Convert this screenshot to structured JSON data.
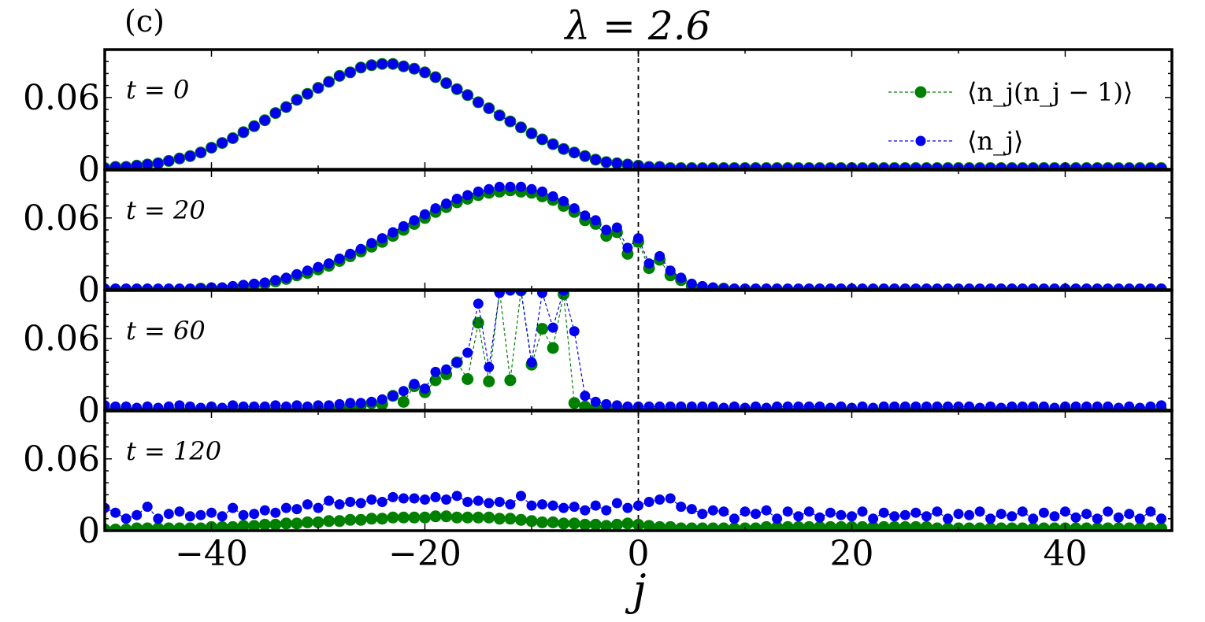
{
  "chart_data": {
    "type": "scatter",
    "panel_tag": "(c)",
    "title": "λ = 2.6",
    "xlabel": "j",
    "ylabel": "",
    "xlim": [
      -50,
      50
    ],
    "ylim": [
      0,
      0.1
    ],
    "xticks": [
      {
        "value": -40,
        "label": "−40"
      },
      {
        "value": -20,
        "label": "−20"
      },
      {
        "value": 0,
        "label": "0"
      },
      {
        "value": 20,
        "label": "20"
      },
      {
        "value": 40,
        "label": "40"
      }
    ],
    "yticks": [
      {
        "value": 0,
        "label": "0"
      },
      {
        "value": 0.06,
        "label": "0.06"
      }
    ],
    "reference_line_x": 0,
    "legend": {
      "position": "top-right",
      "entries": [
        {
          "name": "⟨n_j(n_j − 1)⟩",
          "color": "#008000"
        },
        {
          "name": "⟨n_j⟩",
          "color": "#0000ee"
        }
      ]
    },
    "colors": {
      "pair": "#008000",
      "density": "#0000ee"
    },
    "panels": [
      {
        "label": "t = 0",
        "series": [
          {
            "name": "⟨n_j(n_j − 1)⟩",
            "values": [
              0.001,
              0.002,
              0.002,
              0.003,
              0.004,
              0.005,
              0.007,
              0.009,
              0.011,
              0.014,
              0.018,
              0.022,
              0.026,
              0.031,
              0.036,
              0.041,
              0.047,
              0.052,
              0.058,
              0.063,
              0.068,
              0.073,
              0.078,
              0.081,
              0.085,
              0.087,
              0.088,
              0.088,
              0.086,
              0.084,
              0.081,
              0.077,
              0.072,
              0.067,
              0.062,
              0.056,
              0.051,
              0.045,
              0.04,
              0.035,
              0.03,
              0.025,
              0.021,
              0.017,
              0.014,
              0.011,
              0.008,
              0.006,
              0.005,
              0.004,
              0.003,
              0.002,
              0.002,
              0.001,
              0.001,
              0.001,
              0.001,
              0.001,
              0.001,
              0.001,
              0.001,
              0.001,
              0.001,
              0.001,
              0.001,
              0.001,
              0.001,
              0.001,
              0.001,
              0.001,
              0.001,
              0.001,
              0.001,
              0.001,
              0.001,
              0.001,
              0.001,
              0.001,
              0.001,
              0.001,
              0.001,
              0.001,
              0.001,
              0.001,
              0.001,
              0.001,
              0.001,
              0.001,
              0.001,
              0.001,
              0.001,
              0.001,
              0.001,
              0.001,
              0.001,
              0.001,
              0.001,
              0.001,
              0.001,
              0.001
            ]
          },
          {
            "name": "⟨n_j⟩",
            "values": [
              0.001,
              0.002,
              0.002,
              0.003,
              0.004,
              0.005,
              0.007,
              0.009,
              0.011,
              0.014,
              0.018,
              0.022,
              0.026,
              0.031,
              0.036,
              0.041,
              0.047,
              0.052,
              0.058,
              0.063,
              0.068,
              0.073,
              0.078,
              0.081,
              0.085,
              0.087,
              0.088,
              0.088,
              0.086,
              0.084,
              0.081,
              0.077,
              0.072,
              0.067,
              0.062,
              0.056,
              0.051,
              0.045,
              0.04,
              0.035,
              0.03,
              0.025,
              0.021,
              0.017,
              0.014,
              0.011,
              0.008,
              0.006,
              0.005,
              0.004,
              0.003,
              0.002,
              0.002,
              0.001,
              0.001,
              0.001,
              0.001,
              0.001,
              0.001,
              0.001,
              0.001,
              0.001,
              0.001,
              0.001,
              0.001,
              0.001,
              0.001,
              0.001,
              0.001,
              0.001,
              0.001,
              0.001,
              0.001,
              0.001,
              0.001,
              0.001,
              0.001,
              0.001,
              0.001,
              0.001,
              0.001,
              0.001,
              0.001,
              0.001,
              0.001,
              0.001,
              0.001,
              0.001,
              0.001,
              0.001,
              0.001,
              0.001,
              0.001,
              0.001,
              0.001,
              0.001,
              0.001,
              0.001,
              0.001,
              0.001
            ]
          }
        ]
      },
      {
        "label": "t = 20",
        "series": [
          {
            "name": "⟨n_j(n_j − 1)⟩",
            "values": [
              0.0,
              0.0,
              0.0,
              0.0,
              0.0,
              0.0,
              0.0,
              0.0,
              0.0,
              0.001,
              0.001,
              0.001,
              0.002,
              0.003,
              0.004,
              0.005,
              0.007,
              0.009,
              0.012,
              0.014,
              0.017,
              0.02,
              0.024,
              0.028,
              0.032,
              0.036,
              0.04,
              0.045,
              0.05,
              0.055,
              0.06,
              0.065,
              0.069,
              0.073,
              0.076,
              0.079,
              0.081,
              0.082,
              0.083,
              0.082,
              0.081,
              0.078,
              0.075,
              0.07,
              0.065,
              0.058,
              0.055,
              0.045,
              0.048,
              0.03,
              0.04,
              0.018,
              0.025,
              0.012,
              0.008,
              0.003,
              0.002,
              0.001,
              0.001,
              0.0,
              0.0,
              0.0,
              0.0,
              0.0,
              0.0,
              0.0,
              0.0,
              0.0,
              0.0,
              0.0,
              0.0,
              0.0,
              0.0,
              0.0,
              0.0,
              0.0,
              0.0,
              0.0,
              0.0,
              0.0,
              0.0,
              0.0,
              0.0,
              0.0,
              0.0,
              0.0,
              0.0,
              0.0,
              0.0,
              0.0,
              0.0,
              0.0,
              0.0,
              0.0,
              0.0,
              0.0,
              0.0,
              0.0,
              0.0,
              0.0
            ]
          },
          {
            "name": "⟨n_j⟩",
            "values": [
              0.001,
              0.001,
              0.001,
              0.001,
              0.001,
              0.001,
              0.001,
              0.001,
              0.001,
              0.001,
              0.002,
              0.002,
              0.003,
              0.004,
              0.005,
              0.006,
              0.008,
              0.01,
              0.013,
              0.016,
              0.019,
              0.022,
              0.026,
              0.03,
              0.034,
              0.039,
              0.043,
              0.048,
              0.053,
              0.058,
              0.063,
              0.068,
              0.072,
              0.076,
              0.079,
              0.082,
              0.084,
              0.086,
              0.086,
              0.086,
              0.084,
              0.082,
              0.078,
              0.074,
              0.068,
              0.062,
              0.058,
              0.05,
              0.052,
              0.035,
              0.043,
              0.022,
              0.028,
              0.016,
              0.01,
              0.005,
              0.003,
              0.002,
              0.001,
              0.001,
              0.001,
              0.001,
              0.001,
              0.001,
              0.001,
              0.001,
              0.001,
              0.001,
              0.001,
              0.001,
              0.001,
              0.001,
              0.001,
              0.001,
              0.001,
              0.001,
              0.001,
              0.001,
              0.001,
              0.001,
              0.001,
              0.001,
              0.001,
              0.001,
              0.001,
              0.001,
              0.001,
              0.001,
              0.001,
              0.001,
              0.001,
              0.001,
              0.001,
              0.001,
              0.001,
              0.001,
              0.001,
              0.001,
              0.001,
              0.001
            ]
          }
        ]
      },
      {
        "label": "t = 60",
        "series": [
          {
            "name": "⟨n_j(n_j − 1)⟩",
            "values": [
              0.0,
              0.0,
              0.0,
              0.0,
              0.0,
              0.0,
              0.0,
              0.0,
              0.0,
              0.0,
              0.0,
              0.0,
              0.0,
              0.0,
              0.0,
              0.0,
              0.0,
              0.0,
              0.0,
              0.0,
              0.001,
              0.001,
              0.002,
              0.003,
              0.004,
              0.006,
              0.005,
              0.012,
              0.007,
              0.02,
              0.015,
              0.025,
              0.03,
              0.04,
              0.026,
              0.073,
              0.024,
              0.1,
              0.025,
              0.1,
              0.038,
              0.068,
              0.052,
              0.097,
              0.006,
              0.003,
              0.002,
              0.002,
              0.001,
              0.001,
              0.0,
              0.0,
              0.0,
              0.0,
              0.0,
              0.0,
              0.0,
              0.0,
              0.0,
              0.0,
              0.0,
              0.0,
              0.0,
              0.0,
              0.0,
              0.0,
              0.0,
              0.0,
              0.0,
              0.0,
              0.0,
              0.0,
              0.0,
              0.0,
              0.0,
              0.0,
              0.0,
              0.0,
              0.0,
              0.0,
              0.0,
              0.0,
              0.0,
              0.0,
              0.0,
              0.0,
              0.0,
              0.0,
              0.0,
              0.0,
              0.0,
              0.0,
              0.0,
              0.0,
              0.0,
              0.0,
              0.0,
              0.0,
              0.0,
              0.0
            ]
          },
          {
            "name": "⟨n_j⟩",
            "values": [
              0.004,
              0.003,
              0.003,
              0.002,
              0.003,
              0.002,
              0.003,
              0.004,
              0.003,
              0.002,
              0.003,
              0.002,
              0.004,
              0.003,
              0.003,
              0.003,
              0.004,
              0.003,
              0.004,
              0.003,
              0.004,
              0.004,
              0.005,
              0.006,
              0.006,
              0.007,
              0.009,
              0.012,
              0.016,
              0.022,
              0.018,
              0.032,
              0.034,
              0.04,
              0.048,
              0.089,
              0.036,
              0.098,
              0.1,
              0.1,
              0.04,
              0.098,
              0.069,
              0.104,
              0.066,
              0.012,
              0.007,
              0.005,
              0.004,
              0.003,
              0.003,
              0.003,
              0.003,
              0.003,
              0.003,
              0.003,
              0.003,
              0.003,
              0.002,
              0.003,
              0.002,
              0.003,
              0.002,
              0.003,
              0.003,
              0.003,
              0.003,
              0.003,
              0.002,
              0.003,
              0.002,
              0.003,
              0.002,
              0.003,
              0.003,
              0.003,
              0.003,
              0.003,
              0.003,
              0.003,
              0.003,
              0.003,
              0.002,
              0.003,
              0.002,
              0.003,
              0.003,
              0.003,
              0.003,
              0.002,
              0.003,
              0.003,
              0.003,
              0.003,
              0.003,
              0.002,
              0.003,
              0.002,
              0.003,
              0.004
            ]
          }
        ]
      },
      {
        "label": "t = 120",
        "series": [
          {
            "name": "⟨n_j(n_j − 1)⟩",
            "values": [
              0.001,
              0.001,
              0.001,
              0.002,
              0.002,
              0.002,
              0.002,
              0.002,
              0.002,
              0.002,
              0.003,
              0.003,
              0.003,
              0.004,
              0.004,
              0.005,
              0.005,
              0.006,
              0.006,
              0.007,
              0.007,
              0.008,
              0.008,
              0.009,
              0.009,
              0.01,
              0.01,
              0.011,
              0.011,
              0.011,
              0.011,
              0.012,
              0.012,
              0.011,
              0.011,
              0.011,
              0.011,
              0.01,
              0.01,
              0.009,
              0.008,
              0.007,
              0.007,
              0.006,
              0.006,
              0.005,
              0.005,
              0.004,
              0.005,
              0.006,
              0.005,
              0.004,
              0.003,
              0.003,
              0.002,
              0.002,
              0.002,
              0.002,
              0.002,
              0.002,
              0.002,
              0.002,
              0.003,
              0.003,
              0.003,
              0.003,
              0.003,
              0.003,
              0.003,
              0.003,
              0.003,
              0.003,
              0.003,
              0.003,
              0.003,
              0.003,
              0.003,
              0.003,
              0.002,
              0.002,
              0.002,
              0.002,
              0.002,
              0.002,
              0.002,
              0.002,
              0.002,
              0.002,
              0.002,
              0.002,
              0.002,
              0.002,
              0.002,
              0.002,
              0.002,
              0.002,
              0.002,
              0.002,
              0.002,
              0.002
            ]
          },
          {
            "name": "⟨n_j⟩",
            "values": [
              0.019,
              0.015,
              0.01,
              0.013,
              0.02,
              0.01,
              0.014,
              0.016,
              0.012,
              0.013,
              0.015,
              0.012,
              0.019,
              0.013,
              0.014,
              0.017,
              0.015,
              0.019,
              0.018,
              0.022,
              0.019,
              0.025,
              0.022,
              0.024,
              0.023,
              0.026,
              0.024,
              0.028,
              0.027,
              0.027,
              0.026,
              0.028,
              0.026,
              0.029,
              0.024,
              0.025,
              0.023,
              0.024,
              0.022,
              0.029,
              0.021,
              0.022,
              0.021,
              0.019,
              0.02,
              0.017,
              0.021,
              0.017,
              0.023,
              0.019,
              0.021,
              0.024,
              0.026,
              0.027,
              0.02,
              0.018,
              0.014,
              0.017,
              0.016,
              0.01,
              0.016,
              0.014,
              0.017,
              0.01,
              0.016,
              0.012,
              0.016,
              0.011,
              0.015,
              0.013,
              0.012,
              0.016,
              0.01,
              0.015,
              0.012,
              0.013,
              0.015,
              0.012,
              0.016,
              0.01,
              0.014,
              0.013,
              0.016,
              0.01,
              0.014,
              0.012,
              0.016,
              0.01,
              0.015,
              0.012,
              0.016,
              0.011,
              0.014,
              0.01,
              0.016,
              0.011,
              0.014,
              0.01,
              0.016,
              0.01
            ]
          }
        ]
      }
    ]
  }
}
